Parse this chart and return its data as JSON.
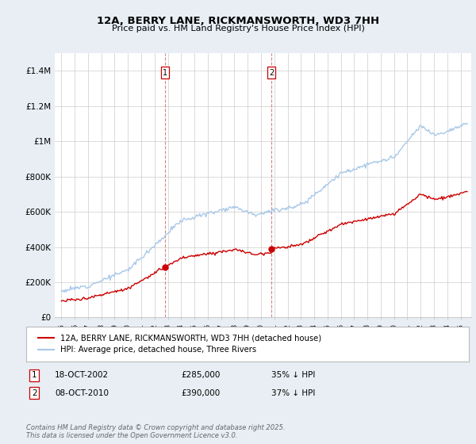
{
  "title": "12A, BERRY LANE, RICKMANSWORTH, WD3 7HH",
  "subtitle": "Price paid vs. HM Land Registry's House Price Index (HPI)",
  "hpi_color": "#a8c8e8",
  "price_color": "#cc0000",
  "vline_color": "#cc6666",
  "background_color": "#e8eef4",
  "plot_bg": "#ffffff",
  "ylim": [
    0,
    1500000
  ],
  "yticks": [
    0,
    200000,
    400000,
    600000,
    800000,
    1000000,
    1200000,
    1400000
  ],
  "ytick_labels": [
    "£0",
    "£200K",
    "£400K",
    "£600K",
    "£800K",
    "£1M",
    "£1.2M",
    "£1.4M"
  ],
  "legend_label_price": "12A, BERRY LANE, RICKMANSWORTH, WD3 7HH (detached house)",
  "legend_label_hpi": "HPI: Average price, detached house, Three Rivers",
  "annotation1_label": "1",
  "annotation1_date": "18-OCT-2002",
  "annotation1_price": "£285,000",
  "annotation1_pct": "35% ↓ HPI",
  "annotation2_label": "2",
  "annotation2_date": "08-OCT-2010",
  "annotation2_price": "£390,000",
  "annotation2_pct": "37% ↓ HPI",
  "footer": "Contains HM Land Registry data © Crown copyright and database right 2025.\nThis data is licensed under the Open Government Licence v3.0.",
  "marker1_x": 2002.79,
  "marker1_y": 285000,
  "marker2_x": 2010.77,
  "marker2_y": 390000,
  "xmin": 1994.5,
  "xmax": 2025.8
}
